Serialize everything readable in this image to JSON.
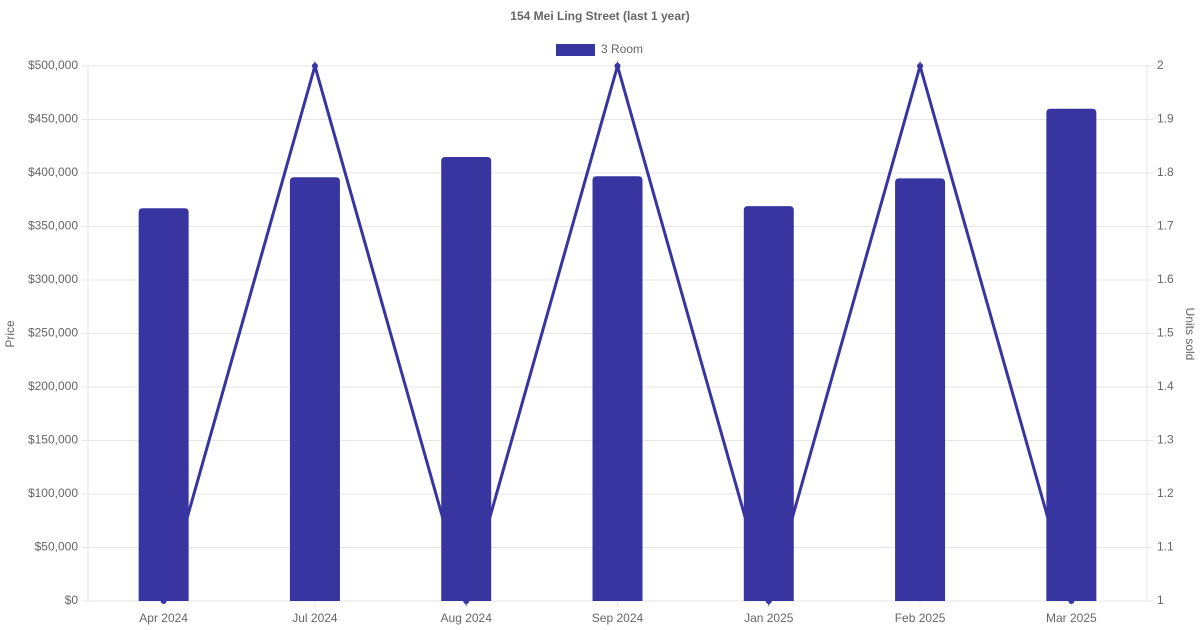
{
  "chart_data": {
    "type": "bar_line",
    "title": "154 Mei Ling Street (last 1 year)",
    "y_label": "Price",
    "y2_label": "Units sold",
    "categories": [
      "Apr 2024",
      "Jul 2024",
      "Aug 2024",
      "Sep 2024",
      "Jan 2025",
      "Feb 2025",
      "Mar 2025"
    ],
    "series": [
      {
        "name": "3 Room",
        "type": "bar",
        "color": "#3835a0",
        "values": [
          367000,
          396000,
          415000,
          397000,
          369000,
          395000,
          460000
        ]
      },
      {
        "type": "line",
        "axis": "y2",
        "color": "#3835a0",
        "values": [
          1,
          2,
          1,
          2,
          1,
          2,
          1
        ]
      }
    ],
    "ylim": [
      0,
      500000
    ],
    "yticks": [
      {
        "value": 0,
        "label": "$0"
      },
      {
        "value": 50000,
        "label": "$50,000"
      },
      {
        "value": 100000,
        "label": "$100,000"
      },
      {
        "value": 150000,
        "label": "$150,000"
      },
      {
        "value": 200000,
        "label": "$200,000"
      },
      {
        "value": 250000,
        "label": "$250,000"
      },
      {
        "value": 300000,
        "label": "$300,000"
      },
      {
        "value": 350000,
        "label": "$350,000"
      },
      {
        "value": 400000,
        "label": "$400,000"
      },
      {
        "value": 450000,
        "label": "$450,000"
      },
      {
        "value": 500000,
        "label": "$500,000"
      }
    ],
    "y2lim": [
      1,
      2
    ],
    "y2ticks": [
      1,
      1.1,
      1.2,
      1.3,
      1.4,
      1.5,
      1.6,
      1.7,
      1.8,
      1.9,
      2
    ],
    "grid": true,
    "legend": "top"
  }
}
